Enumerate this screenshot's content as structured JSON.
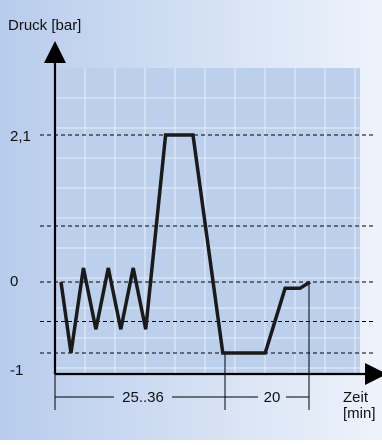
{
  "chart_data": {
    "type": "line",
    "title": "",
    "ylabel": "Druck [bar]",
    "xlabel_line1": "Zeit",
    "xlabel_line2": "[min]",
    "ytick_labels": [
      "2,1",
      "0",
      "-1"
    ],
    "ytick_values": [
      2.1,
      0,
      -1
    ],
    "reference_levels": [
      2.1,
      0.8,
      0,
      -0.5,
      -0.9
    ],
    "segments": [
      {
        "label": "25..36"
      },
      {
        "label": "20"
      }
    ],
    "grid": true,
    "colors": {
      "background_gradient_start": "#b7ccec",
      "background_gradient_end": "#eef3fb",
      "plot_area": "#bcd0ec",
      "grid": "#e8eef8",
      "line": "#1a1a1a",
      "axis": "#000000"
    },
    "series": [
      {
        "values": [
          {
            "x": 0.0,
            "y": 0
          },
          {
            "x": 0.04,
            "y": -0.9
          },
          {
            "x": 0.09,
            "y": 0.2
          },
          {
            "x": 0.14,
            "y": -0.6
          },
          {
            "x": 0.19,
            "y": 0.2
          },
          {
            "x": 0.24,
            "y": -0.6
          },
          {
            "x": 0.29,
            "y": 0.2
          },
          {
            "x": 0.34,
            "y": -0.6
          },
          {
            "x": 0.42,
            "y": 2.1
          },
          {
            "x": 0.53,
            "y": 2.1
          },
          {
            "x": 0.65,
            "y": -0.9
          },
          {
            "x": 0.82,
            "y": -0.9
          },
          {
            "x": 0.9,
            "y": -0.08
          },
          {
            "x": 0.96,
            "y": -0.08
          },
          {
            "x": 1.0,
            "y": 0
          }
        ]
      }
    ]
  }
}
